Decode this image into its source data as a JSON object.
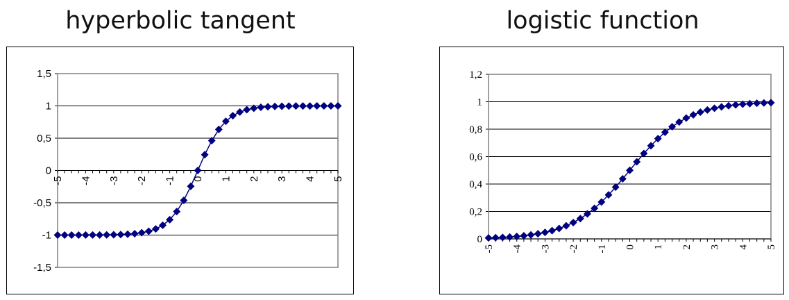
{
  "chart_data": [
    {
      "type": "line",
      "title": "hyperbolic tangent",
      "x": [
        -5,
        -4.75,
        -4.5,
        -4.25,
        -4,
        -3.75,
        -3.5,
        -3.25,
        -3,
        -2.75,
        -2.5,
        -2.25,
        -2,
        -1.75,
        -1.5,
        -1.25,
        -1,
        -0.75,
        -0.5,
        -0.25,
        0,
        0.25,
        0.5,
        0.75,
        1,
        1.25,
        1.5,
        1.75,
        2,
        2.25,
        2.5,
        2.75,
        3,
        3.25,
        3.5,
        3.75,
        4,
        4.25,
        4.5,
        4.75,
        5
      ],
      "series": [
        {
          "values": [
            -0.9999,
            -0.9999,
            -0.9998,
            -0.9996,
            -0.9993,
            -0.9989,
            -0.9982,
            -0.997,
            -0.995,
            -0.9918,
            -0.9866,
            -0.978,
            -0.964,
            -0.9414,
            -0.9051,
            -0.8483,
            -0.7616,
            -0.6351,
            -0.4621,
            -0.2449,
            0,
            0.2449,
            0.4621,
            0.6351,
            0.7616,
            0.8483,
            0.9051,
            0.9414,
            0.964,
            0.978,
            0.9866,
            0.9918,
            0.995,
            0.997,
            0.9982,
            0.9989,
            0.9993,
            0.9996,
            0.9998,
            0.9999,
            0.9999
          ],
          "color": "#000080"
        }
      ],
      "xlim": [
        -5,
        5
      ],
      "ylim": [
        -1.5,
        1.5
      ],
      "xticks": [
        "-5",
        "-4",
        "-3",
        "-2",
        "-1",
        "0",
        "1",
        "2",
        "3",
        "4",
        "5"
      ],
      "yticks": [
        "1,5",
        "1",
        "0,5",
        "0",
        "-0,5",
        "-1",
        "-1,5"
      ],
      "grid": true,
      "marker": "diamond"
    },
    {
      "type": "line",
      "title": "logistic function",
      "x": [
        -5,
        -4.75,
        -4.5,
        -4.25,
        -4,
        -3.75,
        -3.5,
        -3.25,
        -3,
        -2.75,
        -2.5,
        -2.25,
        -2,
        -1.75,
        -1.5,
        -1.25,
        -1,
        -0.75,
        -0.5,
        -0.25,
        0,
        0.25,
        0.5,
        0.75,
        1,
        1.25,
        1.5,
        1.75,
        2,
        2.25,
        2.5,
        2.75,
        3,
        3.25,
        3.5,
        3.75,
        4,
        4.25,
        4.5,
        4.75,
        5
      ],
      "series": [
        {
          "values": [
            0.0067,
            0.0086,
            0.011,
            0.014,
            0.018,
            0.023,
            0.0293,
            0.0373,
            0.0474,
            0.0601,
            0.0759,
            0.0953,
            0.1192,
            0.148,
            0.1824,
            0.2227,
            0.2689,
            0.3208,
            0.3775,
            0.4378,
            0.5,
            0.5622,
            0.6225,
            0.6792,
            0.7311,
            0.7773,
            0.8176,
            0.852,
            0.8808,
            0.9047,
            0.9241,
            0.9399,
            0.9526,
            0.9627,
            0.9707,
            0.977,
            0.982,
            0.986,
            0.989,
            0.9914,
            0.9933
          ],
          "color": "#000080"
        }
      ],
      "xlim": [
        -5,
        5
      ],
      "ylim": [
        0,
        1.2
      ],
      "xticks": [
        "-5",
        "-4",
        "-3",
        "-2",
        "-1",
        "0",
        "1",
        "2",
        "3",
        "4",
        "5"
      ],
      "yticks": [
        "1,2",
        "1",
        "0,8",
        "0,6",
        "0,4",
        "0,2",
        "0"
      ],
      "grid": true,
      "marker": "diamond"
    }
  ]
}
